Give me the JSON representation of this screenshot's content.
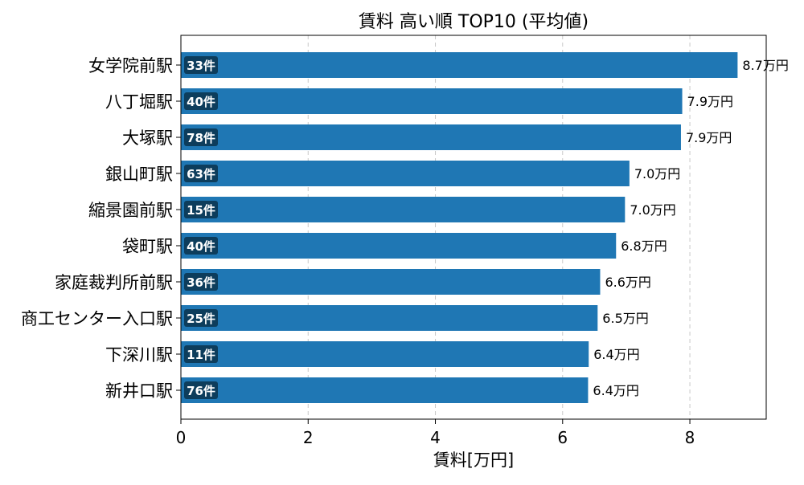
{
  "chart_data": {
    "type": "bar",
    "orientation": "horizontal",
    "title": "賃料 高い順 TOP10 (平均値)",
    "xlabel": "賃料[万円]",
    "ylabel": "",
    "xlim": [
      0,
      9.2
    ],
    "xticks": [
      0,
      2,
      4,
      6,
      8
    ],
    "grid": "x-dashed",
    "categories": [
      "女学院前駅",
      "八丁堀駅",
      "大塚駅",
      "銀山町駅",
      "縮景園前駅",
      "袋町駅",
      "家庭裁判所前駅",
      "商工センター入口駅",
      "下深川駅",
      "新井口駅"
    ],
    "values": [
      8.75,
      7.88,
      7.86,
      7.05,
      6.98,
      6.84,
      6.59,
      6.55,
      6.41,
      6.4
    ],
    "value_labels": [
      "8.7万円",
      "7.9万円",
      "7.9万円",
      "7.0万円",
      "7.0万円",
      "6.8万円",
      "6.6万円",
      "6.5万円",
      "6.4万円",
      "6.4万円"
    ],
    "count_labels": [
      "33件",
      "40件",
      "78件",
      "63件",
      "15件",
      "40件",
      "36件",
      "25件",
      "11件",
      "76件"
    ],
    "bar_color": "#1f77b4",
    "badge_color": "#0d3d5c"
  }
}
